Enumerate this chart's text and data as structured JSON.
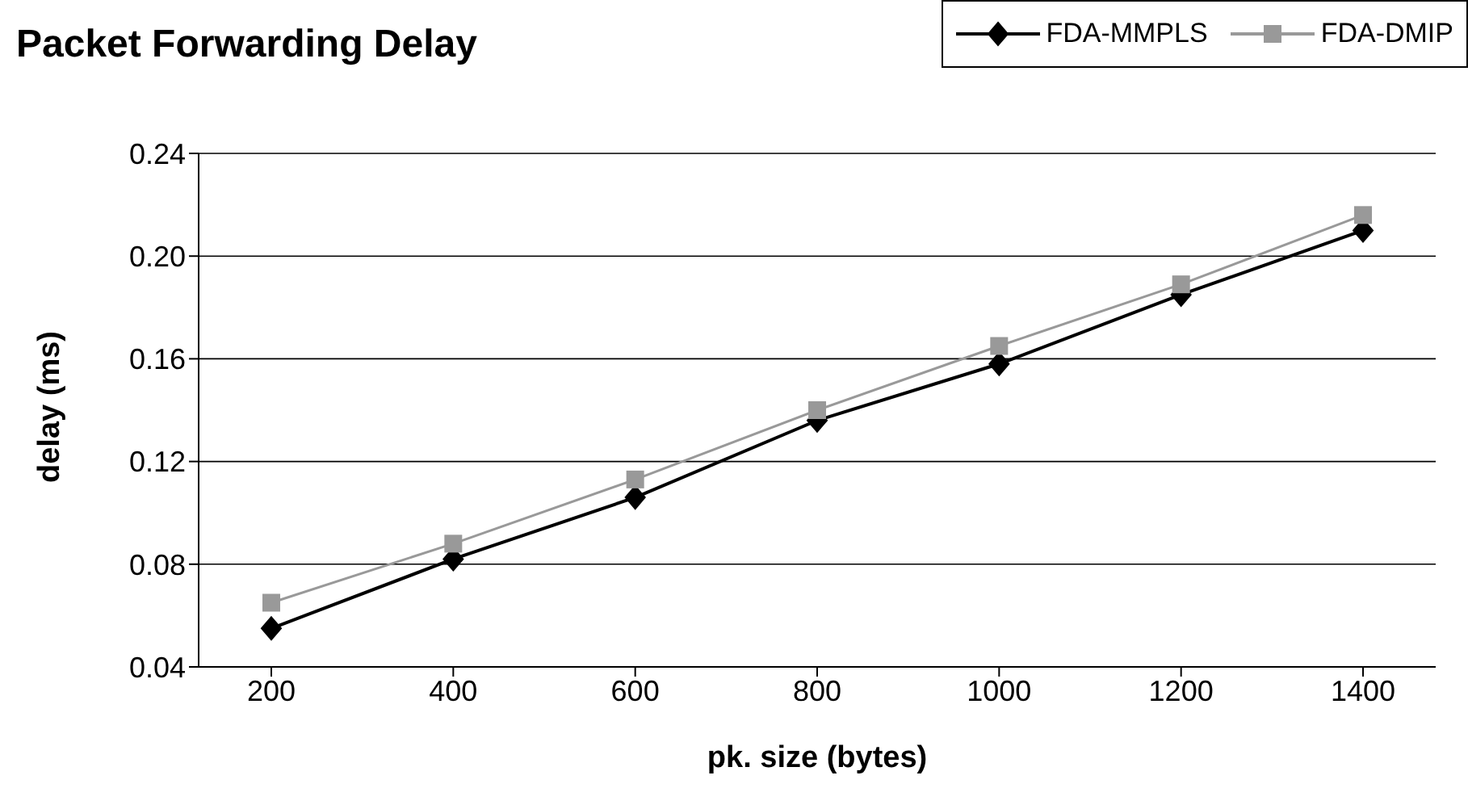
{
  "chart_data": {
    "type": "line",
    "title": "Packet Forwarding Delay",
    "xlabel": "pk. size (bytes)",
    "ylabel": "delay (ms)",
    "categories": [
      "200",
      "400",
      "600",
      "800",
      "1000",
      "1200",
      "1400"
    ],
    "series": [
      {
        "name": "FDA-MMPLS",
        "color": "#000000",
        "marker": "diamond",
        "values": [
          0.055,
          0.082,
          0.106,
          0.136,
          0.158,
          0.185,
          0.21
        ]
      },
      {
        "name": "FDA-DMIP",
        "color": "#999999",
        "marker": "square",
        "values": [
          0.065,
          0.088,
          0.113,
          0.14,
          0.165,
          0.189,
          0.216
        ]
      }
    ],
    "ylim": [
      0.04,
      0.24
    ],
    "yticks": [
      {
        "value": 0.04,
        "label": "0.04"
      },
      {
        "value": 0.08,
        "label": "0.08"
      },
      {
        "value": 0.12,
        "label": "0.12"
      },
      {
        "value": 0.16,
        "label": "0.16"
      },
      {
        "value": 0.2,
        "label": "0.20"
      },
      {
        "value": 0.24,
        "label": "0.24"
      }
    ],
    "grid": "y",
    "legend": "top right",
    "line_style": "solid"
  }
}
